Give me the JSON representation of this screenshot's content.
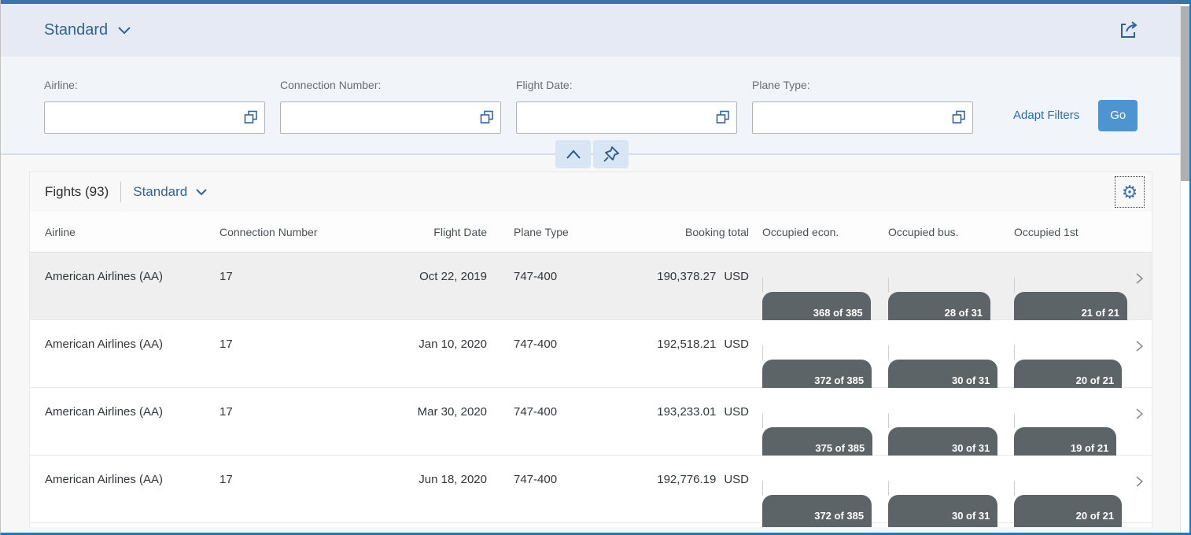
{
  "shell": {
    "variant_title": "Standard"
  },
  "filters": {
    "fields": [
      {
        "label": "Airline:",
        "value": ""
      },
      {
        "label": "Connection Number:",
        "value": ""
      },
      {
        "label": "Flight Date:",
        "value": ""
      },
      {
        "label": "Plane Type:",
        "value": ""
      }
    ],
    "adapt_filters_label": "Adapt Filters",
    "go_label": "Go"
  },
  "table": {
    "title": "Fights (93)",
    "variant": "Standard",
    "columns": [
      "Airline",
      "Connection Number",
      "Flight Date",
      "Plane Type",
      "Booking total",
      "Occupied econ.",
      "Occupied bus.",
      "Occupied 1st"
    ],
    "rows": [
      {
        "airline": "American Airlines (AA)",
        "connection": "17",
        "flight_date": "Oct 22, 2019",
        "plane_type": "747-400",
        "booking_total": "190,378.27",
        "currency": "USD",
        "econ": {
          "text": "368 of 385",
          "pct": 95.6
        },
        "bus": {
          "text": "28 of 31",
          "pct": 90.3
        },
        "first": {
          "text": "21 of 21",
          "pct": 100
        }
      },
      {
        "airline": "American Airlines (AA)",
        "connection": "17",
        "flight_date": "Jan 10, 2020",
        "plane_type": "747-400",
        "booking_total": "192,518.21",
        "currency": "USD",
        "econ": {
          "text": "372 of 385",
          "pct": 96.6
        },
        "bus": {
          "text": "30 of 31",
          "pct": 96.8
        },
        "first": {
          "text": "20 of 21",
          "pct": 95.2
        }
      },
      {
        "airline": "American Airlines (AA)",
        "connection": "17",
        "flight_date": "Mar 30, 2020",
        "plane_type": "747-400",
        "booking_total": "193,233.01",
        "currency": "USD",
        "econ": {
          "text": "375 of 385",
          "pct": 97.4
        },
        "bus": {
          "text": "30 of 31",
          "pct": 96.8
        },
        "first": {
          "text": "19 of 21",
          "pct": 90.5
        }
      },
      {
        "airline": "American Airlines (AA)",
        "connection": "17",
        "flight_date": "Jun 18, 2020",
        "plane_type": "747-400",
        "booking_total": "192,776.19",
        "currency": "USD",
        "econ": {
          "text": "372 of 385",
          "pct": 96.6
        },
        "bus": {
          "text": "30 of 31",
          "pct": 96.8
        },
        "first": {
          "text": "20 of 21",
          "pct": 95.2
        }
      }
    ]
  },
  "icons": {
    "gear": "⚙"
  },
  "colors": {
    "topbar": "#3d74a6",
    "shell_header_bg": "#e5eaf4",
    "filter_bar_bg": "#f1f4f9",
    "accent_button": "#4e94d0",
    "link_blue": "#2d6ca8",
    "variant_blue": "#33638f",
    "progress_fill": "#5d6468",
    "selected_row_bg": "#efefef",
    "bottom_border_blue": "#1a78c6"
  }
}
